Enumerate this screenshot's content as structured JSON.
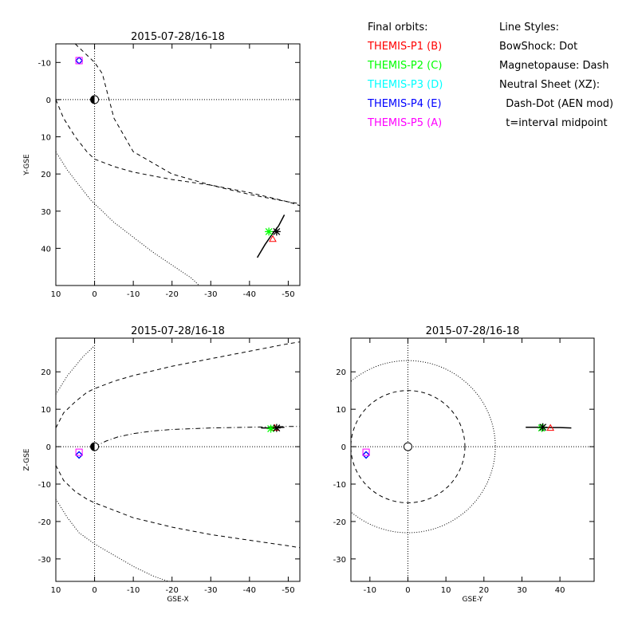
{
  "legend": {
    "orbits_title": "Final orbits:",
    "probes": [
      {
        "label": "THEMIS-P1 (B)",
        "color": "#ff0000"
      },
      {
        "label": "THEMIS-P2 (C)",
        "color": "#00ff00"
      },
      {
        "label": "THEMIS-P3 (D)",
        "color": "#00ffff"
      },
      {
        "label": "THEMIS-P4 (E)",
        "color": "#0000ff"
      },
      {
        "label": "THEMIS-P5 (A)",
        "color": "#ff00ff"
      }
    ],
    "styles_title": "Line Styles:",
    "styles": [
      "BowShock: Dot",
      "Magnetopause: Dash",
      "Neutral Sheet (XZ):",
      "  Dash-Dot (AEN mod)",
      "  t=interval midpoint"
    ]
  },
  "chart_data": [
    {
      "type": "line",
      "title": "2015-07-28/16-18",
      "xlabel": "",
      "ylabel": "Y-GSE",
      "xlim": [
        10,
        -53
      ],
      "ylim": [
        -15,
        50
      ],
      "y_reversed": true,
      "xticks": [
        10,
        0,
        -10,
        -20,
        -30,
        -40,
        -50
      ],
      "yticks": [
        -10,
        0,
        10,
        20,
        30,
        40
      ],
      "series": [
        {
          "role": "magnetopause",
          "style": "dash",
          "x": [
            5,
            3,
            0,
            -2,
            -5,
            -10,
            -20,
            -30,
            -40,
            -50,
            -53
          ],
          "y": [
            -15,
            -13,
            -10,
            -7,
            5,
            14,
            20,
            23,
            25.5,
            27.5,
            28
          ]
        },
        {
          "role": "magnetopause-inner",
          "style": "dash",
          "x": [
            10,
            8,
            5,
            2,
            0,
            -5,
            -10,
            -15,
            -20,
            -30,
            -40,
            -50,
            -53
          ],
          "y": [
            0,
            5,
            10,
            14,
            16,
            18,
            19.5,
            20.5,
            21.5,
            23,
            25,
            27.5,
            28.5
          ]
        },
        {
          "role": "bowshock",
          "style": "dot",
          "x": [
            10,
            7,
            4,
            1,
            -2,
            -5,
            -10,
            -15,
            -20,
            -25,
            -27
          ],
          "y": [
            14,
            19,
            23,
            27,
            30,
            33,
            37,
            41,
            44.5,
            48,
            50
          ]
        },
        {
          "role": "orbit",
          "style": "solid",
          "x": [
            -42,
            -44,
            -46,
            -47.5,
            -49
          ],
          "y": [
            42.5,
            39,
            36,
            34,
            31
          ]
        }
      ],
      "probe_positions": [
        {
          "probe": "P1",
          "marker": "triangle",
          "color": "#ff0000",
          "x": -46,
          "y": 37.5
        },
        {
          "probe": "P2",
          "marker": "asterisk",
          "color": "#00ff00",
          "x": -45,
          "y": 35.5
        },
        {
          "probe": "P2b",
          "marker": "asterisk",
          "color": "#000000",
          "x": -47,
          "y": 35.5
        },
        {
          "probe": "P3",
          "marker": "diamond",
          "color": "#00ffff",
          "x": 4,
          "y": -10.5
        },
        {
          "probe": "P4",
          "marker": "diamond",
          "color": "#0000ff",
          "x": 4,
          "y": -10.5
        },
        {
          "probe": "P5",
          "marker": "square",
          "color": "#ff00ff",
          "x": 4,
          "y": -10.5
        }
      ],
      "earth": {
        "x": 0,
        "y": 0
      }
    },
    {
      "type": "line",
      "title": "2015-07-28/16-18",
      "xlabel": "GSE-X",
      "ylabel": "Z-GSE",
      "xlim": [
        10,
        -53
      ],
      "ylim": [
        -36,
        29
      ],
      "xticks": [
        10,
        0,
        -10,
        -20,
        -30,
        -40,
        -50
      ],
      "yticks": [
        -30,
        -20,
        -10,
        0,
        10,
        20
      ],
      "series": [
        {
          "role": "bowshock",
          "style": "dot",
          "x": [
            10,
            7,
            3,
            0
          ],
          "y": [
            14,
            19,
            24,
            27
          ]
        },
        {
          "role": "magnetopause",
          "style": "dash",
          "x": [
            10,
            8,
            5,
            2,
            0,
            -5,
            -10,
            -20,
            -30,
            -40,
            -50,
            -53
          ],
          "y": [
            5,
            9,
            12,
            14.5,
            15.5,
            17.5,
            19,
            21.5,
            23.5,
            25.5,
            27.5,
            28
          ]
        },
        {
          "role": "neutral-sheet",
          "style": "dashdot",
          "x": [
            0,
            -3,
            -6,
            -10,
            -15,
            -20,
            -30,
            -40,
            -50,
            -53
          ],
          "y": [
            0,
            1.5,
            2.6,
            3.5,
            4.2,
            4.6,
            5,
            5.2,
            5.4,
            5.4
          ]
        },
        {
          "role": "magnetopause",
          "style": "dash",
          "x": [
            10,
            8,
            5,
            2,
            0,
            -5,
            -10,
            -20,
            -30,
            -40,
            -50,
            -53
          ],
          "y": [
            -5,
            -9,
            -12,
            -14,
            -15,
            -17,
            -19,
            -21.5,
            -23.5,
            -25,
            -26.5,
            -27
          ]
        },
        {
          "role": "bowshock",
          "style": "dot",
          "x": [
            10,
            7,
            4,
            0,
            -5,
            -10,
            -15,
            -19
          ],
          "y": [
            -14,
            -19,
            -23,
            -26,
            -29,
            -32,
            -34.5,
            -36
          ]
        },
        {
          "role": "orbit",
          "style": "solid",
          "x": [
            -43,
            -45,
            -47,
            -49
          ],
          "y": [
            5,
            5,
            5.1,
            5.2
          ]
        }
      ],
      "probe_positions": [
        {
          "probe": "P1",
          "marker": "triangle",
          "color": "#ff0000",
          "x": -46.5,
          "y": 5
        },
        {
          "probe": "P2",
          "marker": "asterisk",
          "color": "#00ff00",
          "x": -45.5,
          "y": 4.8
        },
        {
          "probe": "P2b",
          "marker": "asterisk",
          "color": "#000000",
          "x": -47,
          "y": 5
        },
        {
          "probe": "P3",
          "marker": "diamond",
          "color": "#00ffff",
          "x": 4,
          "y": -2.2
        },
        {
          "probe": "P4",
          "marker": "diamond",
          "color": "#0000ff",
          "x": 4,
          "y": -2.2
        },
        {
          "probe": "P5",
          "marker": "square",
          "color": "#ff00ff",
          "x": 4,
          "y": -1.5
        }
      ],
      "earth": {
        "x": 0,
        "y": 0
      }
    },
    {
      "type": "line",
      "title": "2015-07-28/16-18",
      "xlabel": "GSE-Y",
      "ylabel": "",
      "xlim": [
        -15,
        49
      ],
      "ylim": [
        -36,
        29
      ],
      "xticks": [
        -10,
        0,
        10,
        20,
        30,
        40
      ],
      "yticks": [
        -30,
        -20,
        -10,
        0,
        10,
        20
      ],
      "circles": [
        {
          "role": "magnetopause",
          "style": "dash",
          "r": 15
        },
        {
          "role": "bowshock",
          "style": "dot",
          "r": 23
        }
      ],
      "series": [
        {
          "role": "orbit",
          "style": "solid",
          "x": [
            31,
            34,
            37,
            40,
            43
          ],
          "y": [
            5.2,
            5.2,
            5.1,
            5.1,
            5
          ]
        }
      ],
      "probe_positions": [
        {
          "probe": "P1",
          "marker": "triangle",
          "color": "#ff0000",
          "x": 37.5,
          "y": 5
        },
        {
          "probe": "P2",
          "marker": "asterisk",
          "color": "#00ff00",
          "x": 35.2,
          "y": 5
        },
        {
          "probe": "P2b",
          "marker": "asterisk",
          "color": "#000000",
          "x": 35.5,
          "y": 5.2
        },
        {
          "probe": "P3",
          "marker": "diamond",
          "color": "#00ffff",
          "x": -11,
          "y": -2.2
        },
        {
          "probe": "P4",
          "marker": "diamond",
          "color": "#0000ff",
          "x": -11,
          "y": -2.2
        },
        {
          "probe": "P5",
          "marker": "square",
          "color": "#ff00ff",
          "x": -11,
          "y": -1.5
        }
      ],
      "earth": {
        "x": 0,
        "y": 0,
        "style": "ring"
      }
    }
  ]
}
